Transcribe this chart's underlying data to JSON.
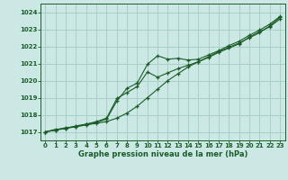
{
  "title": "Graphe pression niveau de la mer (hPa)",
  "bg_color": "#cce8e4",
  "grid_color": "#a8d0c8",
  "line_color": "#1a5c28",
  "xlim": [
    -0.5,
    23.5
  ],
  "ylim": [
    1016.5,
    1024.5
  ],
  "yticks": [
    1017,
    1018,
    1019,
    1020,
    1021,
    1022,
    1023,
    1024
  ],
  "xticks": [
    0,
    1,
    2,
    3,
    4,
    5,
    6,
    7,
    8,
    9,
    10,
    11,
    12,
    13,
    14,
    15,
    16,
    17,
    18,
    19,
    20,
    21,
    22,
    23
  ],
  "series1": {
    "x": [
      0,
      1,
      2,
      3,
      4,
      5,
      6,
      7,
      8,
      9,
      10,
      11,
      12,
      13,
      14,
      15,
      16,
      17,
      18,
      19,
      20,
      21,
      22,
      23
    ],
    "y": [
      1017.0,
      1017.1,
      1017.2,
      1017.3,
      1017.4,
      1017.5,
      1017.6,
      1017.8,
      1018.1,
      1018.5,
      1019.0,
      1019.5,
      1020.0,
      1020.4,
      1020.8,
      1021.1,
      1021.4,
      1021.7,
      1021.95,
      1022.2,
      1022.5,
      1022.8,
      1023.2,
      1023.7
    ]
  },
  "series2": {
    "x": [
      0,
      1,
      2,
      3,
      4,
      5,
      6,
      7,
      8,
      9,
      10,
      11,
      12,
      13,
      14,
      15,
      16,
      17,
      18,
      19,
      20,
      21,
      22,
      23
    ],
    "y": [
      1017.0,
      1017.1,
      1017.25,
      1017.3,
      1017.45,
      1017.55,
      1017.75,
      1018.8,
      1019.55,
      1019.85,
      1020.95,
      1021.45,
      1021.25,
      1021.3,
      1021.2,
      1021.25,
      1021.5,
      1021.75,
      1022.05,
      1022.3,
      1022.65,
      1022.95,
      1023.3,
      1023.75
    ]
  },
  "series3": {
    "x": [
      0,
      1,
      2,
      3,
      4,
      5,
      6,
      7,
      8,
      9,
      10,
      11,
      12,
      13,
      14,
      15,
      16,
      17,
      18,
      19,
      20,
      21,
      22,
      23
    ],
    "y": [
      1017.0,
      1017.15,
      1017.2,
      1017.35,
      1017.45,
      1017.6,
      1017.8,
      1018.95,
      1019.3,
      1019.65,
      1020.5,
      1020.2,
      1020.45,
      1020.7,
      1020.9,
      1021.1,
      1021.35,
      1021.65,
      1021.9,
      1022.15,
      1022.55,
      1022.85,
      1023.15,
      1023.6
    ]
  }
}
